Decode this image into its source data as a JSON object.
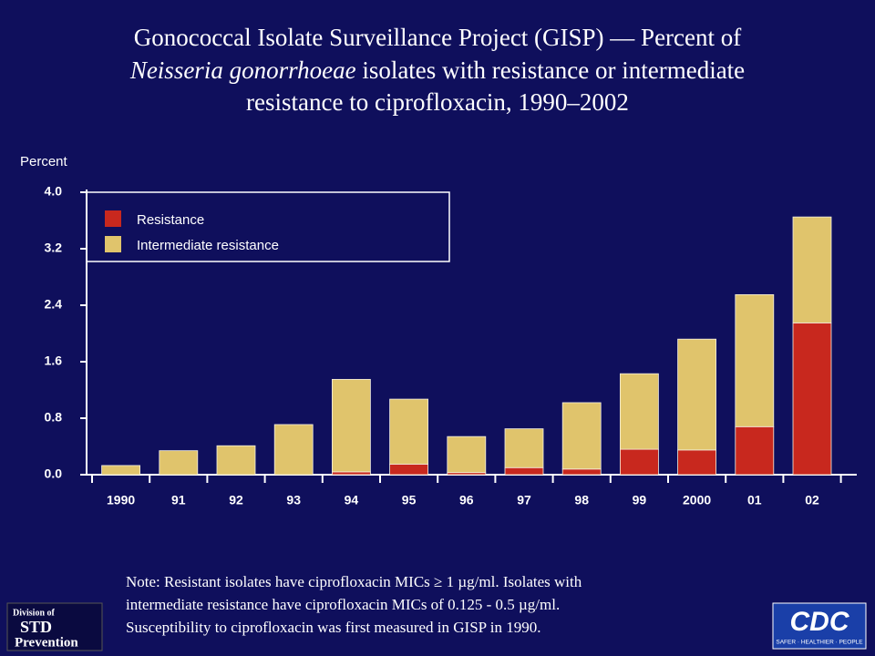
{
  "chart_data": {
    "type": "stacked_bar",
    "title_parts": [
      "Gonococcal Isolate Surveillance Project (GISP) — Percent of",
      "Neisseria gonorrhoeae",
      " isolates with resistance or intermediate",
      "resistance to ciprofloxacin, 1990–2002"
    ],
    "y_label": "Percent",
    "categories": [
      "1990",
      "91",
      "92",
      "93",
      "94",
      "95",
      "96",
      "97",
      "98",
      "99",
      "2000",
      "01",
      "02"
    ],
    "series": [
      {
        "name": "Resistance",
        "color": "#c8281e",
        "values": [
          0,
          0,
          0,
          0,
          0.04,
          0.15,
          0.03,
          0.1,
          0.08,
          0.36,
          0.35,
          0.68,
          2.15
        ]
      },
      {
        "name": "Intermediate resistance",
        "color": "#e0c46c",
        "values": [
          0.13,
          0.34,
          0.41,
          0.71,
          1.31,
          0.92,
          0.51,
          0.55,
          0.94,
          1.07,
          1.57,
          1.87,
          1.5
        ]
      }
    ],
    "ylim": [
      0,
      4
    ],
    "yticks": [
      {
        "value": 0,
        "label": "0.0"
      },
      {
        "value": 0.8,
        "label": "0.8"
      },
      {
        "value": 1.6,
        "label": "1.6"
      },
      {
        "value": 2.4,
        "label": "2.4"
      },
      {
        "value": 3.2,
        "label": "3.2"
      },
      {
        "value": 4,
        "label": "4.0"
      }
    ],
    "legend": "top-left",
    "note": [
      "Note: Resistant isolates have ciprofloxacin MICs ≥ 1 µg/ml. Isolates with",
      "intermediate resistance have ciprofloxacin MICs of 0.125 - 0.5 µg/ml.",
      "Susceptibility to ciprofloxacin was first measured in GISP in 1990."
    ],
    "logo_left": [
      "Division of",
      "STD",
      "Prevention"
    ],
    "logo_right": [
      "CDC",
      "SAFER · HEALTHIER · PEOPLE"
    ]
  }
}
